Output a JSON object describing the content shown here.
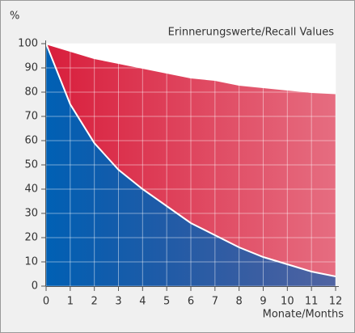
{
  "chart_data": {
    "type": "area",
    "title": "Erinnerungswerte/Recall Values",
    "y_label": "%",
    "x_label": "Monate/Months",
    "x": [
      0,
      1,
      2,
      3,
      4,
      5,
      6,
      7,
      8,
      9,
      10,
      11,
      12
    ],
    "series": [
      {
        "color": "#d81e3c",
        "values": [
          100,
          97,
          94,
          92,
          90,
          88,
          86,
          85,
          83,
          82,
          81,
          80,
          79.5
        ]
      },
      {
        "color": "#0060b4",
        "values": [
          100,
          75,
          59,
          48,
          40,
          33,
          26,
          21,
          16,
          12,
          9,
          6,
          4
        ]
      }
    ],
    "xlim": [
      0,
      12
    ],
    "xticks": [
      0,
      1,
      2,
      3,
      4,
      5,
      6,
      7,
      8,
      9,
      10,
      11,
      12
    ],
    "ylim": [
      0,
      100
    ],
    "yticks": [
      0,
      10,
      20,
      30,
      40,
      50,
      60,
      70,
      80,
      90,
      100
    ],
    "grid": true
  }
}
